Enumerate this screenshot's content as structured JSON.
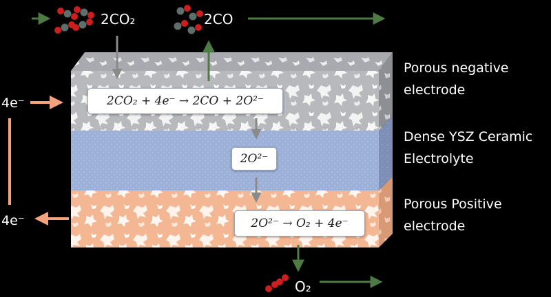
{
  "gas_labels": {
    "co2_in": "2CO₂",
    "co_out": "2CO",
    "o2_out": "O₂"
  },
  "electron_labels": {
    "top": "4e⁻",
    "bottom": "4e⁻"
  },
  "layers": [
    {
      "name": "Porous negative electrode",
      "line1": "Porous negative",
      "line2": "electrode",
      "color": "#b8b9bd"
    },
    {
      "name": "Dense YSZ Ceramic Electrolyte",
      "line1": "Dense YSZ Ceramic",
      "line2": "Electrolyte",
      "color": "#9db0d8"
    },
    {
      "name": "Porous Positive electrode",
      "line1": "Porous Positive",
      "line2": "electrode",
      "color": "#f4b793"
    }
  ],
  "equations": {
    "cathode": "2CO₂ + 4e⁻ → 2CO + 2O²⁻",
    "electrolyte": "2O²⁻",
    "anode": "2O²⁻ → O₂ + 4e⁻"
  },
  "colors": {
    "background": "#000000",
    "gas_arrow": "#4e7a45",
    "electron_arrow": "#f4a27e",
    "flow_arrow": "#8a8a8a",
    "molecule_oxygen": "#cc1f1f",
    "molecule_carbon": "#5d6f6a"
  },
  "icons": [
    "co2-molecules-icon",
    "co-molecules-icon",
    "o2-molecule-icon"
  ]
}
